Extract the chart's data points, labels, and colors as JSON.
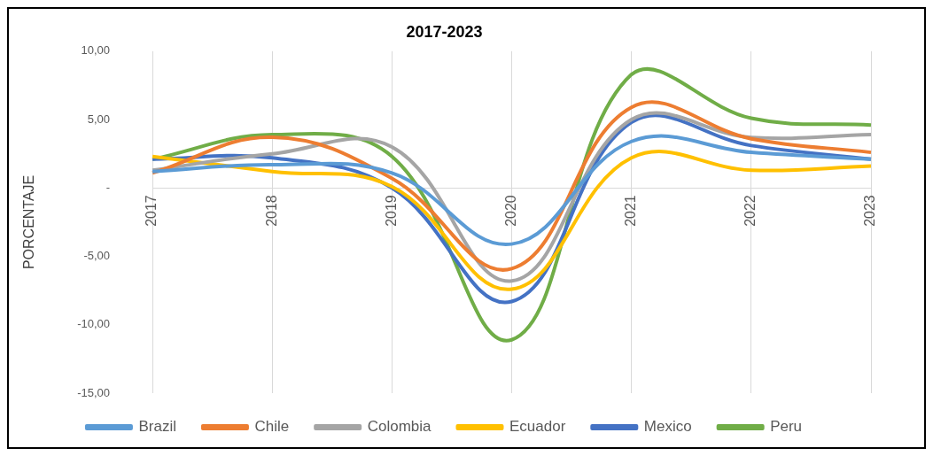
{
  "chart_data": {
    "type": "line",
    "title": "2017-2023",
    "ylabel": "PORCENTAJE",
    "categories": [
      "2017",
      "2018",
      "2019",
      "2020",
      "2021",
      "2022",
      "2023"
    ],
    "series": [
      {
        "name": "Brazil",
        "color": "#5b9bd5",
        "values": [
          1.2,
          1.7,
          1.1,
          -4.1,
          3.4,
          2.6,
          2.1
        ]
      },
      {
        "name": "Chile",
        "color": "#ed7d31",
        "values": [
          1.1,
          3.7,
          0.7,
          -5.9,
          5.9,
          3.6,
          2.6
        ]
      },
      {
        "name": "Colombia",
        "color": "#a5a5a5",
        "values": [
          1.3,
          2.5,
          3.0,
          -6.8,
          5.0,
          3.7,
          3.9
        ]
      },
      {
        "name": "Ecuador",
        "color": "#ffc000",
        "values": [
          2.3,
          1.2,
          0.1,
          -7.4,
          2.2,
          1.3,
          1.6
        ]
      },
      {
        "name": "Mexico",
        "color": "#4472c4",
        "values": [
          2.1,
          2.2,
          0.0,
          -8.3,
          4.8,
          3.1,
          2.1
        ]
      },
      {
        "name": "Peru",
        "color": "#70ad47",
        "values": [
          2.1,
          3.9,
          2.3,
          -11.1,
          8.3,
          5.1,
          4.6
        ]
      }
    ],
    "ylim": [
      -15,
      10
    ],
    "yticks": [
      {
        "value": 10,
        "label": "10,00"
      },
      {
        "value": 5,
        "label": "5,00"
      },
      {
        "value": 0,
        "label": "-"
      },
      {
        "value": -5,
        "label": "-5,00"
      },
      {
        "value": -10,
        "label": "-10,00"
      },
      {
        "value": -15,
        "label": "-15,00"
      }
    ],
    "grid": "x",
    "legend": "bottom",
    "marker": "none",
    "line_style": "solid"
  }
}
